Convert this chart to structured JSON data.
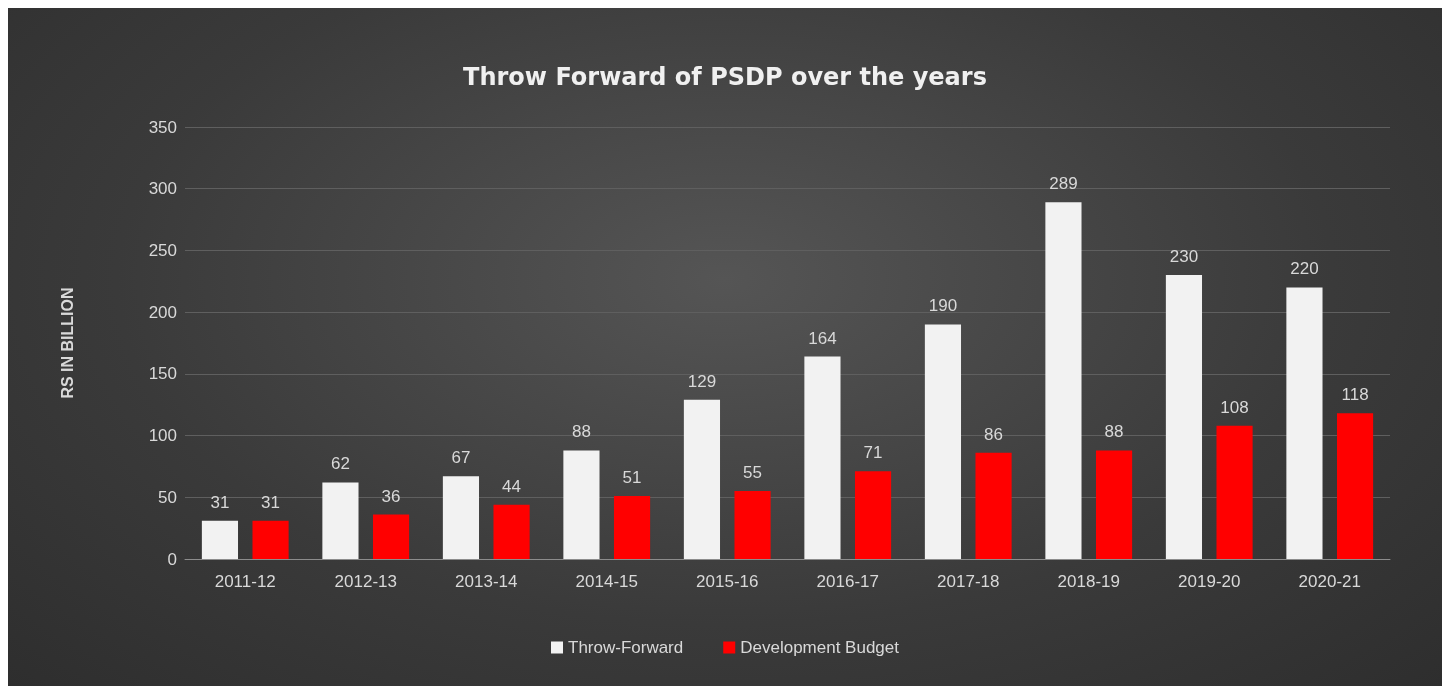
{
  "chart_data": {
    "type": "bar",
    "title": "Throw Forward of PSDP over the years",
    "ylabel": "RS IN BILLION",
    "categories": [
      "2011-12",
      "2012-13",
      "2013-14",
      "2014-15",
      "2015-16",
      "2016-17",
      "2017-18",
      "2018-19",
      "2019-20",
      "2020-21"
    ],
    "series": [
      {
        "name": "Throw-Forward",
        "color": "#f2f2f2",
        "values": [
          31,
          62,
          67,
          88,
          129,
          164,
          190,
          289,
          230,
          220
        ]
      },
      {
        "name": "Development Budget",
        "color": "#ff0000",
        "values": [
          31,
          36,
          44,
          51,
          55,
          71,
          86,
          88,
          108,
          118
        ]
      }
    ],
    "ylim": [
      0,
      350
    ],
    "yticks": [
      0,
      50,
      100,
      150,
      200,
      250,
      300,
      350
    ],
    "grid": "y",
    "legend": "bottom",
    "data_labels": true
  }
}
